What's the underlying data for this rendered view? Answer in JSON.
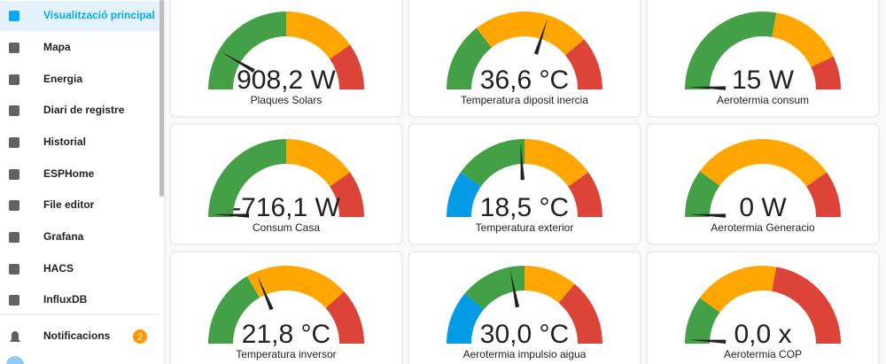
{
  "sidebar": {
    "items": [
      "Visualització principal",
      "Mapa",
      "Energia",
      "Diari de registre",
      "Historial",
      "ESPHome",
      "File editor",
      "Grafana",
      "HACS",
      "InfluxDB"
    ],
    "notifications": {
      "label": "Notificacions",
      "badge": "2"
    }
  },
  "cards": [
    {
      "value": "908,2 W",
      "name": "Plaques Solars"
    },
    {
      "value": "36,6 °C",
      "name": "Temperatura diposit inercia"
    },
    {
      "value": "15 W",
      "name": "Aerotermia consum"
    },
    {
      "value": "-716,1 W",
      "name": "Consum Casa"
    },
    {
      "value": "18,5 °C",
      "name": "Temperatura exterior"
    },
    {
      "value": "0 W",
      "name": "Aerotermia Generacio"
    },
    {
      "value": "21,8 °C",
      "name": "Temperatura inversor"
    },
    {
      "value": "30,0 °C",
      "name": "Aerotermia impulsio aigua"
    },
    {
      "value": "0,0 x",
      "name": "Aerotermia COP"
    }
  ]
}
